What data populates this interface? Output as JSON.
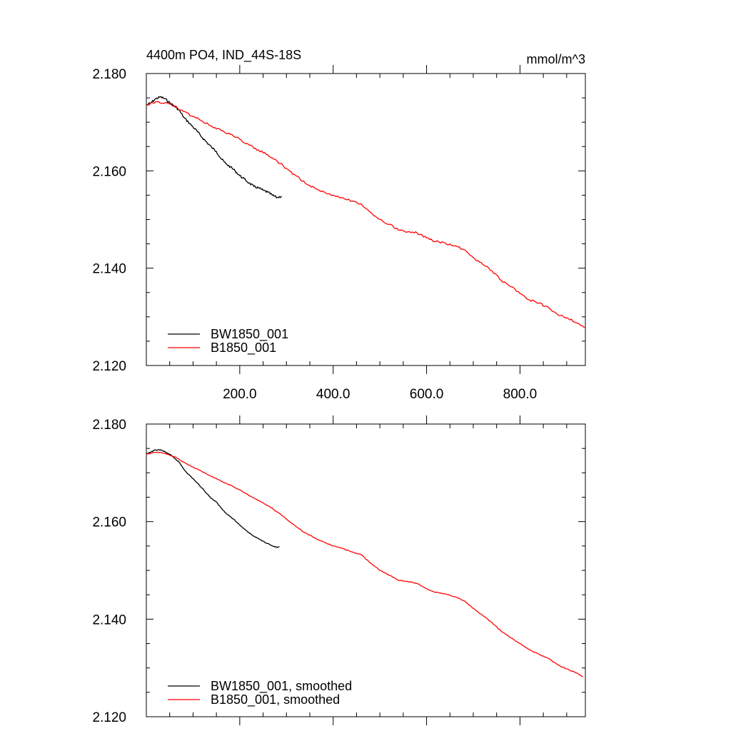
{
  "chart_data": [
    {
      "type": "line",
      "title": "4400m PO4, IND_44S-18S",
      "units": "mmol/m^3",
      "xlabel": "",
      "ylabel": "",
      "xlim": [
        0,
        940
      ],
      "ylim": [
        2.12,
        2.18
      ],
      "x_ticks": [
        200,
        400,
        600,
        800
      ],
      "x_tick_labels": [
        "200.0",
        "400.0",
        "600.0",
        "800.0"
      ],
      "y_ticks": [
        2.12,
        2.14,
        2.16,
        2.18
      ],
      "y_tick_labels": [
        "2.120",
        "2.140",
        "2.160",
        "2.180"
      ],
      "grid": false,
      "legend_position": "bottom-left",
      "series": [
        {
          "name": "BW1850_001",
          "color": "#000000",
          "x": [
            0,
            10,
            20,
            30,
            40,
            50,
            60,
            70,
            80,
            90,
            100,
            110,
            120,
            130,
            140,
            150,
            160,
            170,
            180,
            190,
            200,
            210,
            220,
            230,
            240,
            250,
            260,
            270,
            280,
            290
          ],
          "y": [
            2.1735,
            2.174,
            2.1748,
            2.1752,
            2.1748,
            2.174,
            2.1733,
            2.1725,
            2.171,
            2.17,
            2.169,
            2.168,
            2.1668,
            2.1658,
            2.1648,
            2.164,
            2.1625,
            2.1615,
            2.1608,
            2.16,
            2.159,
            2.1583,
            2.1575,
            2.1568,
            2.1565,
            2.156,
            2.1556,
            2.155,
            2.1545,
            2.1548
          ]
        },
        {
          "name": "B1850_001",
          "color": "#ff0000",
          "x": [
            0,
            20,
            40,
            60,
            80,
            100,
            120,
            140,
            160,
            180,
            200,
            220,
            240,
            260,
            280,
            300,
            320,
            340,
            360,
            380,
            400,
            420,
            440,
            460,
            480,
            500,
            520,
            540,
            560,
            580,
            600,
            620,
            640,
            660,
            680,
            700,
            720,
            740,
            760,
            780,
            800,
            820,
            840,
            860,
            880,
            900,
            920,
            940
          ],
          "y": [
            2.1735,
            2.1742,
            2.174,
            2.1733,
            2.1722,
            2.1712,
            2.1702,
            2.1692,
            2.1683,
            2.1675,
            2.1665,
            2.1653,
            2.1643,
            2.1633,
            2.162,
            2.1605,
            2.159,
            2.1575,
            2.1565,
            2.1557,
            2.155,
            2.1545,
            2.1538,
            2.1532,
            2.1515,
            2.15,
            2.149,
            2.1478,
            2.1475,
            2.1472,
            2.1462,
            2.1455,
            2.1452,
            2.1446,
            2.1438,
            2.1422,
            2.1408,
            2.1395,
            2.1375,
            2.1362,
            2.1348,
            2.1335,
            2.1328,
            2.132,
            2.1305,
            2.1298,
            2.1288,
            2.1278
          ]
        }
      ]
    },
    {
      "type": "line",
      "title": "",
      "xlabel": "",
      "ylabel": "",
      "xlim": [
        0,
        940
      ],
      "ylim": [
        2.12,
        2.18
      ],
      "x_ticks": [
        200,
        400,
        600,
        800
      ],
      "x_tick_labels": [],
      "y_ticks": [
        2.12,
        2.14,
        2.16,
        2.18
      ],
      "y_tick_labels": [
        "2.120",
        "2.140",
        "2.160",
        "2.180"
      ],
      "grid": false,
      "legend_position": "bottom-left",
      "series": [
        {
          "name": "BW1850_001, smoothed",
          "color": "#000000",
          "x": [
            0,
            10,
            20,
            30,
            40,
            50,
            60,
            70,
            80,
            90,
            100,
            110,
            120,
            130,
            140,
            150,
            160,
            170,
            180,
            190,
            200,
            210,
            220,
            230,
            240,
            250,
            260,
            270,
            280,
            285
          ],
          "y": [
            2.1738,
            2.1743,
            2.1747,
            2.1747,
            2.1743,
            2.1738,
            2.173,
            2.1722,
            2.1708,
            2.1697,
            2.1688,
            2.1678,
            2.1668,
            2.1657,
            2.1647,
            2.164,
            2.1628,
            2.1618,
            2.161,
            2.1602,
            2.1593,
            2.1585,
            2.1577,
            2.157,
            2.1565,
            2.156,
            2.1555,
            2.155,
            2.1547,
            2.1548
          ]
        },
        {
          "name": "B1850_001, smoothed",
          "color": "#ff0000",
          "x": [
            0,
            20,
            40,
            60,
            80,
            100,
            120,
            140,
            160,
            180,
            200,
            220,
            240,
            260,
            280,
            300,
            320,
            340,
            360,
            380,
            400,
            420,
            440,
            460,
            480,
            500,
            520,
            540,
            560,
            580,
            600,
            620,
            640,
            660,
            680,
            700,
            720,
            740,
            760,
            780,
            800,
            820,
            840,
            860,
            880,
            900,
            920,
            935
          ],
          "y": [
            2.1738,
            2.1742,
            2.174,
            2.1733,
            2.1722,
            2.1712,
            2.1702,
            2.1692,
            2.1683,
            2.1675,
            2.1665,
            2.1653,
            2.1643,
            2.1633,
            2.162,
            2.1605,
            2.159,
            2.1577,
            2.1567,
            2.1558,
            2.155,
            2.1545,
            2.1538,
            2.1532,
            2.1515,
            2.15,
            2.149,
            2.148,
            2.1477,
            2.1473,
            2.1462,
            2.1455,
            2.1452,
            2.1446,
            2.1438,
            2.1422,
            2.1408,
            2.1393,
            2.1375,
            2.1362,
            2.135,
            2.1337,
            2.1328,
            2.132,
            2.1307,
            2.1298,
            2.129,
            2.1282
          ]
        }
      ]
    }
  ]
}
